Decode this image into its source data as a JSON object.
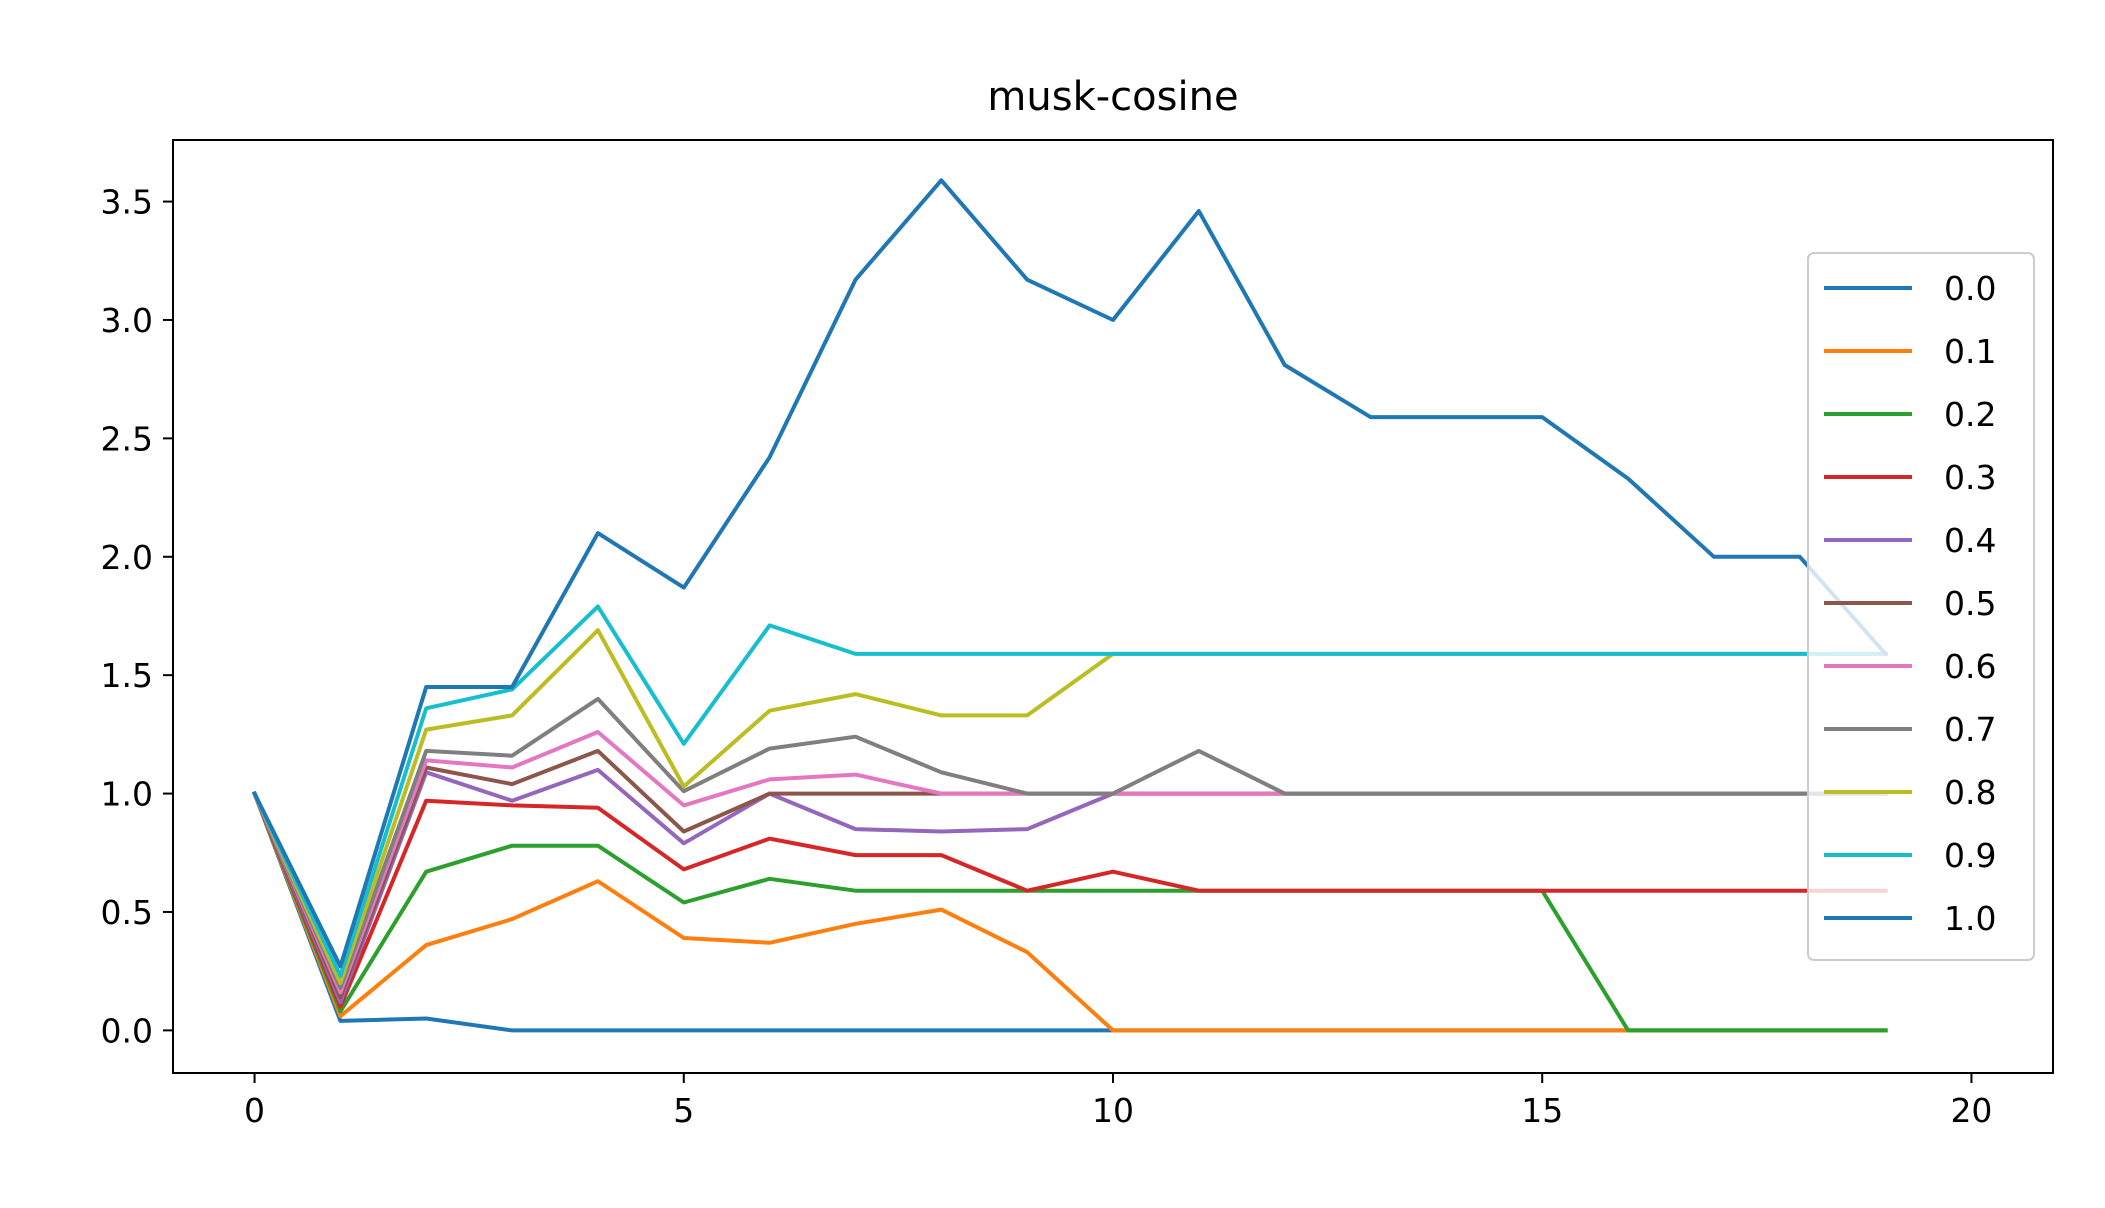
{
  "chart_data": {
    "type": "line",
    "title": "musk-cosine",
    "xlabel": "",
    "ylabel": "",
    "xlim": [
      -0.95,
      20.95
    ],
    "ylim": [
      -0.18,
      3.76
    ],
    "xticks": [
      0,
      5,
      10,
      15,
      20
    ],
    "xtick_labels": [
      "0",
      "5",
      "10",
      "15",
      "20"
    ],
    "yticks": [
      0.0,
      0.5,
      1.0,
      1.5,
      2.0,
      2.5,
      3.0,
      3.5
    ],
    "ytick_labels": [
      "0.0",
      "0.5",
      "1.0",
      "1.5",
      "2.0",
      "2.5",
      "3.0",
      "3.5"
    ],
    "grid": false,
    "legend_position": "center-right",
    "x": [
      0,
      1,
      2,
      3,
      4,
      5,
      6,
      7,
      8,
      9,
      10,
      11,
      12,
      13,
      14,
      15,
      16,
      17,
      18,
      19
    ],
    "series": [
      {
        "name": "0.0",
        "color": "#1f77b4",
        "values": [
          1.0,
          0.04,
          0.05,
          0.0,
          0.0,
          0.0,
          0.0,
          0.0,
          0.0,
          0.0,
          0.0,
          0.0,
          0.0,
          0.0,
          0.0,
          0.0,
          0.0,
          0.0,
          0.0,
          0.0
        ]
      },
      {
        "name": "0.1",
        "color": "#ff7f0e",
        "values": [
          1.0,
          0.06,
          0.36,
          0.47,
          0.63,
          0.39,
          0.37,
          0.45,
          0.51,
          0.33,
          0.0,
          0.0,
          0.0,
          0.0,
          0.0,
          0.0,
          0.0,
          0.0,
          0.0,
          0.0
        ]
      },
      {
        "name": "0.2",
        "color": "#2ca02c",
        "values": [
          1.0,
          0.08,
          0.67,
          0.78,
          0.78,
          0.54,
          0.64,
          0.59,
          0.59,
          0.59,
          0.59,
          0.59,
          0.59,
          0.59,
          0.59,
          0.59,
          0.0,
          0.0,
          0.0,
          0.0
        ]
      },
      {
        "name": "0.3",
        "color": "#d62728",
        "values": [
          1.0,
          0.1,
          0.97,
          0.95,
          0.94,
          0.68,
          0.81,
          0.74,
          0.74,
          0.59,
          0.67,
          0.59,
          0.59,
          0.59,
          0.59,
          0.59,
          0.59,
          0.59,
          0.59,
          0.59
        ]
      },
      {
        "name": "0.4",
        "color": "#9467bd",
        "values": [
          1.0,
          0.12,
          1.09,
          0.97,
          1.1,
          0.79,
          1.0,
          0.85,
          0.84,
          0.85,
          1.0,
          1.0,
          1.0,
          1.0,
          1.0,
          1.0,
          1.0,
          1.0,
          1.0,
          1.0
        ]
      },
      {
        "name": "0.5",
        "color": "#8c564b",
        "values": [
          1.0,
          0.14,
          1.11,
          1.04,
          1.18,
          0.84,
          1.0,
          1.0,
          1.0,
          1.0,
          1.0,
          1.0,
          1.0,
          1.0,
          1.0,
          1.0,
          1.0,
          1.0,
          1.0,
          1.0
        ]
      },
      {
        "name": "0.6",
        "color": "#e377c2",
        "values": [
          1.0,
          0.16,
          1.14,
          1.11,
          1.26,
          0.95,
          1.06,
          1.08,
          1.0,
          1.0,
          1.0,
          1.0,
          1.0,
          1.0,
          1.0,
          1.0,
          1.0,
          1.0,
          1.0,
          1.0
        ]
      },
      {
        "name": "0.7",
        "color": "#7f7f7f",
        "values": [
          1.0,
          0.18,
          1.18,
          1.16,
          1.4,
          1.01,
          1.19,
          1.24,
          1.09,
          1.0,
          1.0,
          1.18,
          1.0,
          1.0,
          1.0,
          1.0,
          1.0,
          1.0,
          1.0,
          1.0
        ]
      },
      {
        "name": "0.8",
        "color": "#bcbd22",
        "values": [
          1.0,
          0.2,
          1.27,
          1.33,
          1.69,
          1.03,
          1.35,
          1.42,
          1.33,
          1.33,
          1.59,
          1.59,
          1.59,
          1.59,
          1.59,
          1.59,
          1.59,
          1.59,
          1.59,
          1.59
        ]
      },
      {
        "name": "0.9",
        "color": "#17becf",
        "values": [
          1.0,
          0.23,
          1.36,
          1.44,
          1.79,
          1.21,
          1.71,
          1.59,
          1.59,
          1.59,
          1.59,
          1.59,
          1.59,
          1.59,
          1.59,
          1.59,
          1.59,
          1.59,
          1.59,
          1.59
        ]
      },
      {
        "name": "1.0",
        "color": "#1f77b4",
        "values": [
          1.0,
          0.27,
          1.45,
          1.45,
          2.1,
          1.87,
          2.42,
          3.17,
          3.59,
          3.17,
          3.0,
          3.46,
          2.81,
          2.59,
          2.59,
          2.59,
          2.33,
          2.0,
          2.0,
          1.59
        ]
      }
    ]
  }
}
